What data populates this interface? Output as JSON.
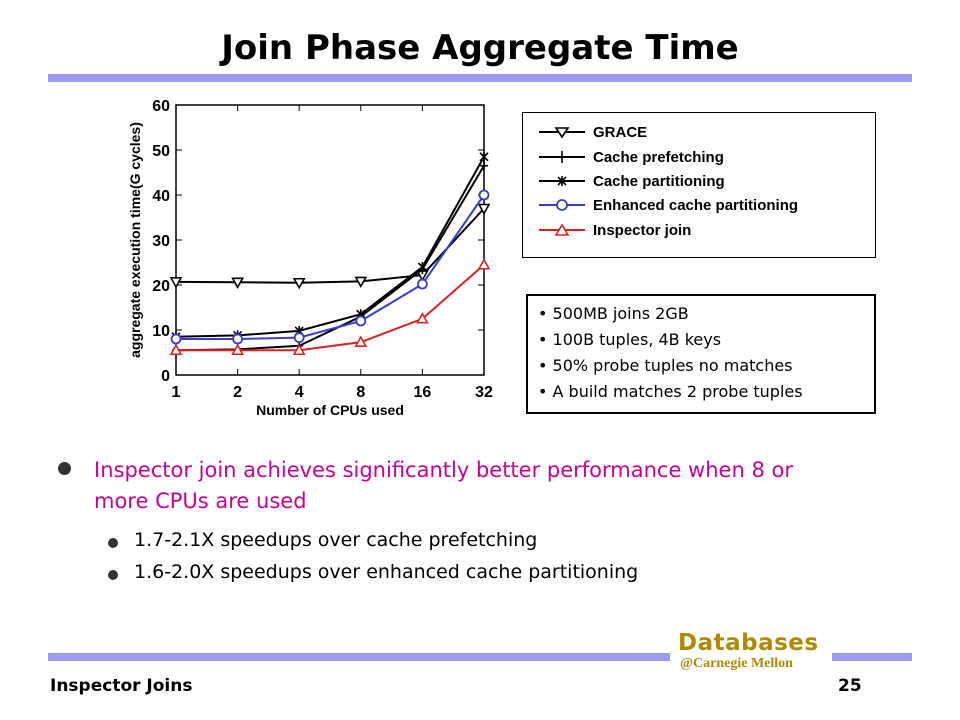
{
  "slide": {
    "title": "Join Phase Aggregate Time",
    "bullet_main": "Inspector join achieves significantly better performance when 8 or more CPUs are used",
    "sub_bullets": [
      "1.7-2.1X speedups over cache prefetching",
      "1.6-2.0X speedups over enhanced cache partitioning"
    ],
    "notes": [
      "500MB joins 2GB",
      "100B tuples, 4B keys",
      "50% probe tuples no matches",
      "A build matches 2 probe tuples"
    ],
    "logo_main": "Databases",
    "logo_sub": "@Carnegie Mellon",
    "footer_left": "Inspector Joins",
    "page_number": "25",
    "colors": {
      "accent_bar": "#9b9bf2",
      "bullet_text": "#cc0099",
      "logo": "#b08a00"
    }
  },
  "chart_data": {
    "type": "line",
    "xlabel": "Number of CPUs used",
    "ylabel": "aggregate execution time(G cycles)",
    "categories": [
      "1",
      "2",
      "4",
      "8",
      "16",
      "32"
    ],
    "ylim": [
      0,
      60
    ],
    "yticks": [
      0,
      10,
      20,
      30,
      40,
      50,
      60
    ],
    "legend_position": "right",
    "series": [
      {
        "name": "GRACE",
        "marker": "triangle-down",
        "color": "#000000",
        "values": [
          20.7,
          20.6,
          20.5,
          20.8,
          22.2,
          37.0
        ]
      },
      {
        "name": "Cache prefetching",
        "marker": "plus",
        "color": "#000000",
        "values": [
          5.5,
          5.7,
          6.5,
          13.0,
          23.5,
          46.5
        ]
      },
      {
        "name": "Cache partitioning",
        "marker": "star",
        "color": "#000000",
        "values": [
          8.5,
          8.8,
          9.8,
          13.5,
          24.0,
          48.5
        ]
      },
      {
        "name": "Enhanced cache partitioning",
        "marker": "circle",
        "color": "#3b3bd6",
        "values": [
          8.0,
          8.0,
          8.3,
          12.0,
          20.2,
          40.0
        ]
      },
      {
        "name": "Inspector join",
        "marker": "triangle-up",
        "color": "#e02020",
        "values": [
          5.5,
          5.5,
          5.5,
          7.3,
          12.5,
          24.5
        ]
      }
    ]
  }
}
